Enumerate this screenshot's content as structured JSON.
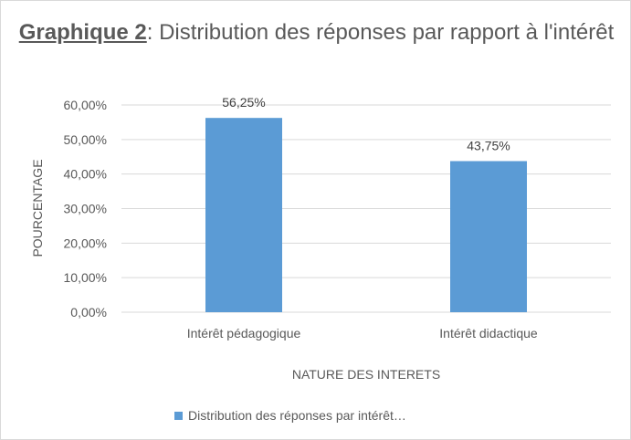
{
  "chart_data": {
    "type": "bar",
    "title_prefix": "Graphique 2",
    "title_rest": ": Distribution des réponses par rapport à l'intérêt",
    "categories": [
      "Intérêt pédagogique",
      "Intérêt didactique"
    ],
    "series": [
      {
        "name": "Distribution des réponses par intérêt…",
        "values": [
          56.25,
          43.75
        ],
        "data_labels": [
          "56,25%",
          "43,75%"
        ],
        "color": "#5b9bd5"
      }
    ],
    "xlabel": "NATURE DES INTERETS",
    "ylabel": "POURCENTAGE",
    "ylim": [
      0,
      60
    ],
    "yticks": [
      0,
      10,
      20,
      30,
      40,
      50,
      60
    ],
    "ytick_labels": [
      "0,00%",
      "10,00%",
      "20,00%",
      "30,00%",
      "40,00%",
      "50,00%",
      "60,00%"
    ],
    "grid": true,
    "legend_position": "bottom"
  }
}
